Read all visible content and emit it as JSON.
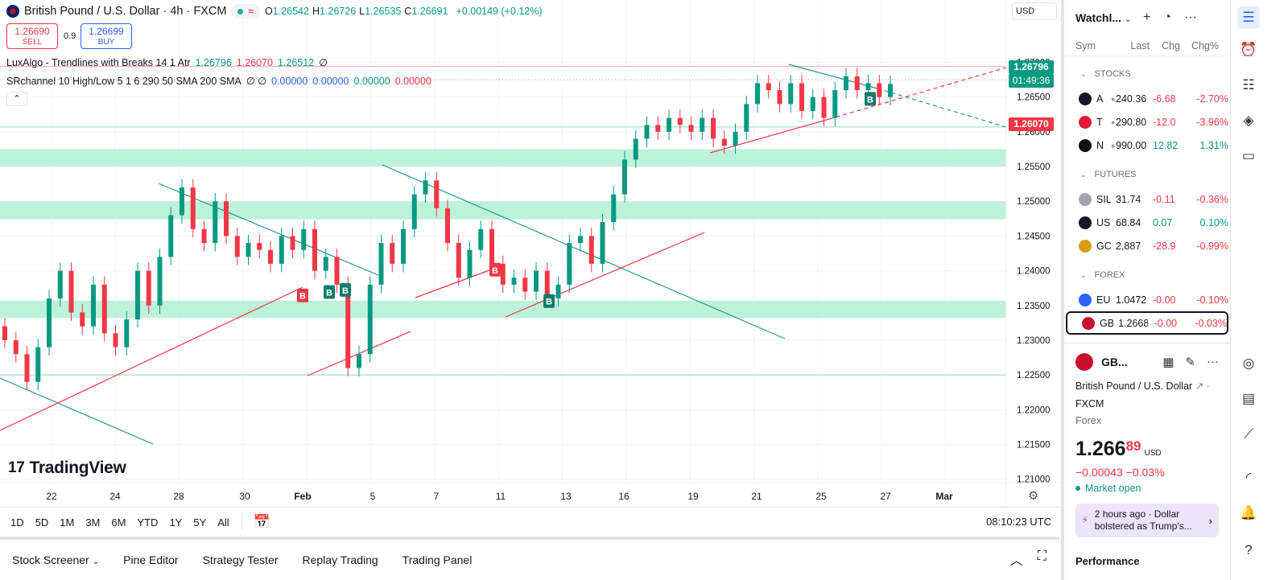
{
  "header": {
    "title": "British Pound / U.S. Dollar · 4h · FXCM",
    "ohlc": [
      {
        "k": "O",
        "v": "1.26542"
      },
      {
        "k": "H",
        "v": "1.26726"
      },
      {
        "k": "L",
        "v": "1.26535"
      },
      {
        "k": "C",
        "v": "1.26691"
      }
    ],
    "change": "+0.00149 (+0.12%)",
    "currency": "USD"
  },
  "trade": {
    "sell_price": "1.26690",
    "sell_label": "SELL",
    "spread": "0.9",
    "buy_price": "1.26699",
    "buy_label": "BUY"
  },
  "indicators": {
    "lux_name": "LuxAlgo - Trendlines with Breaks 14 1 Atr",
    "lux_v1": "1.26796",
    "lux_v2": "1.26070",
    "lux_v3": "1.26512",
    "lux_sym": "∅",
    "sr_name": "SRchannel 10 High/Low 5 1 6 290 50 SMA 200 SMA",
    "sr_sym": "∅ ∅",
    "sr_v1": "0.00000",
    "sr_v2": "0.00000",
    "sr_v3": "0.00000",
    "sr_v4": "0.00000"
  },
  "axis": {
    "y_ticks": [
      "1.27000",
      "1.26500",
      "1.26000",
      "1.25500",
      "1.25000",
      "1.24500",
      "1.24000",
      "1.23500",
      "1.23000",
      "1.22500",
      "1.22000",
      "1.21500",
      "1.21000"
    ],
    "x_ticks": [
      "22",
      "24",
      "28",
      "30",
      "Feb",
      "5",
      "7",
      "11",
      "13",
      "16",
      "19",
      "21",
      "25",
      "27",
      "Mar"
    ],
    "tag_res": "1.26796",
    "tag_countdown": "01:49:36",
    "tag_sup": "1.26070"
  },
  "logo": "TradingView",
  "markers": {
    "buy": "B",
    "sell": "B"
  },
  "range": [
    "1D",
    "5D",
    "1M",
    "3M",
    "6M",
    "YTD",
    "1Y",
    "5Y",
    "All"
  ],
  "clock": "08:10:23 UTC",
  "bottom_tabs": [
    "Stock Screener",
    "Pine Editor",
    "Strategy Tester",
    "Replay Trading",
    "Trading Panel"
  ],
  "watchlist": {
    "title": "Watchl...",
    "cols": [
      "Sym",
      "Last",
      "Chg",
      "Chg%"
    ],
    "sections": [
      {
        "name": "STOCKS",
        "rows": [
          {
            "sym": "A",
            "last": "240.36",
            "chg": "-6.68",
            "pct": "-2.70%",
            "color": "#131722"
          },
          {
            "sym": "T",
            "last": "290.80",
            "chg": "-12.0",
            "pct": "-3.96%",
            "color": "#e31937"
          },
          {
            "sym": "N",
            "last": "990.00",
            "chg": "12.82",
            "pct": "1.31%",
            "color": "#111111"
          }
        ]
      },
      {
        "name": "FUTURES",
        "rows": [
          {
            "sym": "SIL",
            "last": "31.74",
            "chg": "-0.11",
            "pct": "-0.36%",
            "color": "#a0a4b0"
          },
          {
            "sym": "US",
            "last": "68.84",
            "chg": "0.07",
            "pct": "0.10%",
            "color": "#131722"
          },
          {
            "sym": "GC",
            "last": "2,887",
            "chg": "-28.9",
            "pct": "-0.99%",
            "color": "#d4a017"
          }
        ]
      },
      {
        "name": "FOREX",
        "rows": [
          {
            "sym": "EU",
            "last": "1.0472",
            "chg": "-0.00",
            "pct": "-0.10%",
            "color": "#2962ff"
          },
          {
            "sym": "GB",
            "last": "1.2668",
            "chg": "-0.00",
            "pct": "-0.03%",
            "color": "#c8102e"
          }
        ]
      }
    ]
  },
  "detail": {
    "symbol": "GB...",
    "name": "British Pound / U.S. Dollar",
    "exchange": "FXCM",
    "type": "Forex",
    "price_main": "1.266",
    "price_sup": "89",
    "currency": "USD",
    "change": "−0.00043  −0.03%",
    "status": "Market open",
    "news": "2 hours ago · Dollar bolstered as Trump's...",
    "performance": "Performance"
  },
  "chart_data": {
    "type": "candlestick",
    "symbol": "GBPUSD",
    "interval": "4h",
    "ylim": [
      1.2095,
      1.2755
    ],
    "x_labels": [
      "22",
      "24",
      "28",
      "30",
      "Feb",
      "5",
      "7",
      "11",
      "13",
      "16",
      "19",
      "21",
      "25",
      "27",
      "Mar"
    ],
    "resistance_zones": [
      [
        1.255,
        1.2575
      ],
      [
        1.2474,
        1.25
      ],
      [
        1.2332,
        1.2357
      ]
    ],
    "level_lines": [
      1.2694,
      1.2607,
      1.225
    ],
    "closes": [
      1.23,
      1.228,
      1.224,
      1.229,
      1.236,
      1.24,
      1.234,
      1.232,
      1.238,
      1.231,
      1.229,
      1.233,
      1.24,
      1.235,
      1.242,
      1.248,
      1.252,
      1.246,
      1.244,
      1.25,
      1.245,
      1.242,
      1.244,
      1.243,
      1.241,
      1.245,
      1.243,
      1.246,
      1.24,
      1.242,
      1.238,
      1.226,
      1.228,
      1.238,
      1.244,
      1.241,
      1.246,
      1.251,
      1.253,
      1.249,
      1.244,
      1.239,
      1.243,
      1.246,
      1.241,
      1.238,
      1.239,
      1.237,
      1.24,
      1.236,
      1.238,
      1.244,
      1.245,
      1.241,
      1.247,
      1.251,
      1.256,
      1.259,
      1.261,
      1.26,
      1.262,
      1.261,
      1.26,
      1.262,
      1.259,
      1.258,
      1.26,
      1.264,
      1.267,
      1.266,
      1.264,
      1.267,
      1.263,
      1.265,
      1.262,
      1.266,
      1.268,
      1.266,
      1.267,
      1.265,
      1.2669
    ],
    "buy_signals": [
      1.237,
      1.2373,
      1.2357,
      1.2648
    ],
    "sell_signals": [
      1.2335,
      1.2372
    ]
  }
}
